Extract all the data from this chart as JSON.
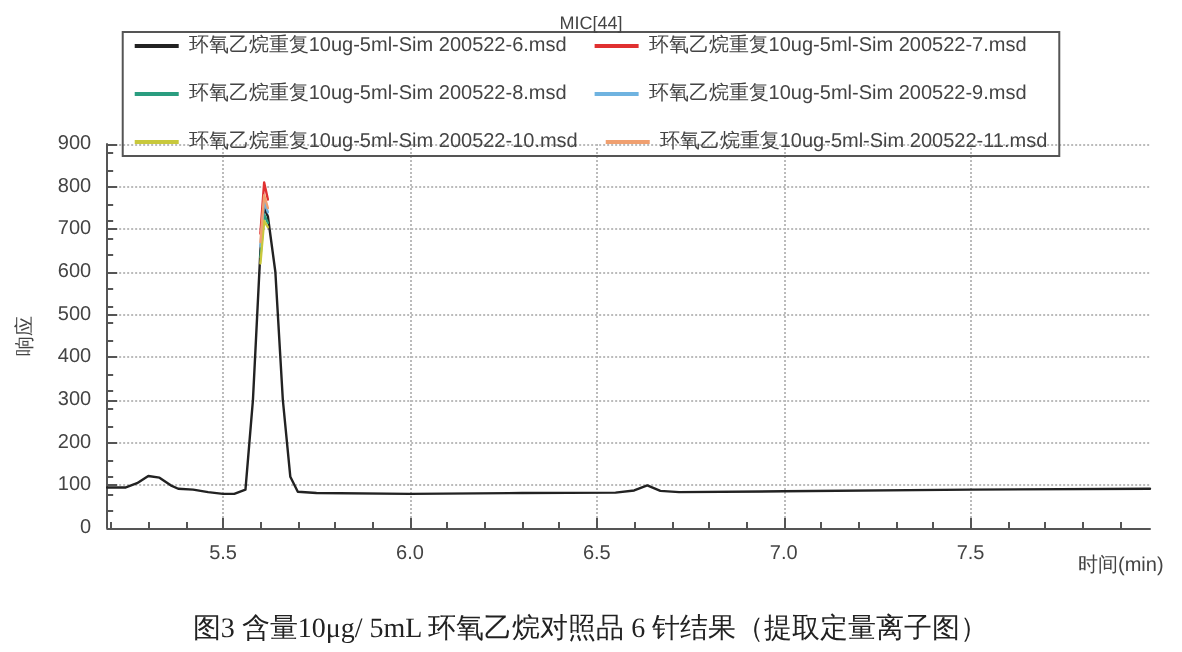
{
  "chart_data": {
    "type": "line",
    "title": "MIC[44]",
    "xlabel": "时间(min)",
    "ylabel": "响应",
    "annotations": [
      "图3 含量10μg/ 5mL 环氧乙烷对照品 6 针结果（提取定量离子图）"
    ],
    "x": [
      5.19,
      5.24,
      5.27,
      5.3,
      5.33,
      5.36,
      5.38,
      5.42,
      5.46,
      5.5,
      5.53,
      5.56,
      5.58,
      5.6,
      5.61,
      5.62,
      5.64,
      5.66,
      5.68,
      5.7,
      5.75,
      6.0,
      6.3,
      6.55,
      6.6,
      6.635,
      6.67,
      6.72,
      7.0,
      7.5,
      7.98
    ],
    "series": [
      {
        "name": "环氧乙烷重复10ug-5ml-Sim 200522-6.msd",
        "color": "#222222",
        "values": [
          95,
          95,
          105,
          122,
          118,
          100,
          92,
          90,
          84,
          80,
          80,
          90,
          300,
          650,
          750,
          730,
          600,
          300,
          120,
          85,
          82,
          80,
          82,
          83,
          88,
          100,
          87,
          84,
          86,
          90,
          92
        ]
      },
      {
        "name": "环氧乙烷重复10ug-5ml-Sim 200522-7.msd",
        "color": "#e03030",
        "values": [
          null,
          null,
          null,
          null,
          null,
          null,
          null,
          null,
          null,
          null,
          null,
          null,
          null,
          690,
          810,
          770,
          null,
          null,
          null,
          null,
          null,
          null,
          null,
          null,
          null,
          null,
          null,
          null,
          null,
          null,
          null
        ]
      },
      {
        "name": "环氧乙烷重复10ug-5ml-Sim 200522-8.msd",
        "color": "#2a9d7f",
        "values": [
          null,
          null,
          null,
          null,
          null,
          null,
          null,
          null,
          null,
          null,
          null,
          null,
          null,
          635,
          735,
          715,
          null,
          null,
          null,
          null,
          null,
          null,
          null,
          null,
          null,
          null,
          null,
          null,
          null,
          null,
          null
        ]
      },
      {
        "name": "环氧乙烷重复10ug-5ml-Sim 200522-9.msd",
        "color": "#6fb3e0",
        "values": [
          null,
          null,
          null,
          null,
          null,
          null,
          null,
          null,
          null,
          null,
          null,
          null,
          null,
          660,
          765,
          740,
          null,
          null,
          null,
          null,
          null,
          null,
          null,
          null,
          null,
          null,
          null,
          null,
          null,
          null,
          null
        ]
      },
      {
        "name": "环氧乙烷重复10ug-5ml-Sim 200522-10.msd",
        "color": "#c8c83c",
        "values": [
          null,
          null,
          null,
          null,
          null,
          null,
          null,
          null,
          null,
          null,
          null,
          null,
          null,
          620,
          720,
          705,
          null,
          null,
          null,
          null,
          null,
          null,
          null,
          null,
          null,
          null,
          null,
          null,
          null,
          null,
          null
        ]
      },
      {
        "name": "环氧乙烷重复10ug-5ml-Sim 200522-11.msd",
        "color": "#f0a070",
        "values": [
          null,
          null,
          null,
          null,
          null,
          null,
          null,
          null,
          null,
          null,
          null,
          null,
          null,
          670,
          780,
          750,
          null,
          null,
          null,
          null,
          null,
          null,
          null,
          null,
          null,
          null,
          null,
          null,
          null,
          null,
          null
        ]
      }
    ],
    "xlim": [
      5.19,
      7.98
    ],
    "xticks": [
      5.5,
      {
        "value": 6,
        "label": "6.0"
      },
      6.5,
      {
        "value": 7,
        "label": "7.0"
      },
      7.5
    ],
    "ylim": [
      0,
      900
    ],
    "yticks": [
      0,
      100,
      200,
      300,
      400,
      500,
      600,
      700,
      800,
      900
    ],
    "grid": true,
    "legend": "top",
    "marker": "none",
    "line_style": "solid"
  }
}
